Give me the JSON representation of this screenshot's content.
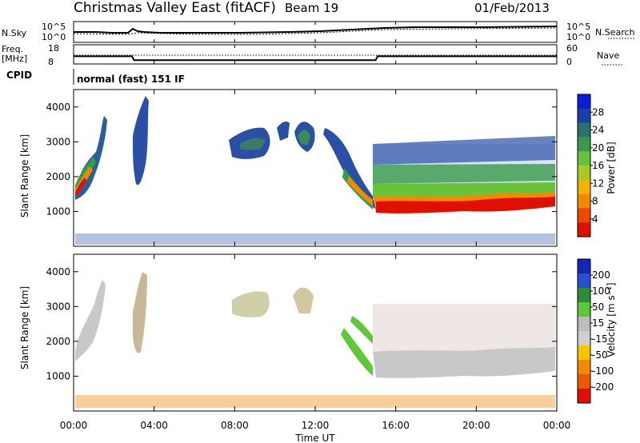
{
  "header": {
    "station": "Christmas Valley East (fitACF)",
    "beam": "Beam 19",
    "date": "01/Feb/2013"
  },
  "chart_data": [
    {
      "name": "noise-panel",
      "type": "line",
      "left_label": "N.Sky",
      "right_label": "N.Search",
      "left_ticks": [
        "10^5",
        "10^0"
      ],
      "right_ticks": [
        "10^5",
        "10^0"
      ]
    },
    {
      "name": "frequency-nave-panel",
      "type": "line",
      "left_label_line1": "Freq.",
      "left_label_line2": "[MHz]",
      "right_label": "Nave",
      "left_ticks": [
        "18",
        "8"
      ],
      "right_ticks": [
        "60",
        "0"
      ],
      "series": [
        {
          "name": "Freq.",
          "x": [
            0.0,
            2.9,
            3.0,
            15.0,
            15.1,
            24.0
          ],
          "y": [
            12.0,
            12.0,
            10.0,
            10.0,
            12.0,
            12.0
          ]
        }
      ]
    },
    {
      "name": "cpid-panel",
      "type": "table",
      "label": "CPID",
      "mode": "normal (fast) 151 IF"
    },
    {
      "name": "power-panel",
      "type": "heatmap",
      "ylabel": "Slant Range [km]",
      "y_ticks": [
        "1000",
        "2000",
        "3000",
        "4000"
      ],
      "ylim": [
        0,
        4500
      ],
      "colorbar_label": "Power [dB]",
      "colorbar_ticks": [
        "28",
        "24",
        "20",
        "16",
        "12",
        "8",
        "4"
      ],
      "colorbar_colors": [
        "#0a1ed8",
        "#1a3fa8",
        "#2f6e6e",
        "#3a9a4a",
        "#6ac23a",
        "#a8c82a",
        "#f2b400",
        "#f08a00",
        "#ec4a00",
        "#e01000"
      ]
    },
    {
      "name": "velocity-panel",
      "type": "heatmap",
      "ylabel": "Slant Range [km]",
      "y_ticks": [
        "1000",
        "2000",
        "3000",
        "4000"
      ],
      "ylim": [
        0,
        4500
      ],
      "colorbar_label": "Velocity [m s⁻¹]",
      "colorbar_ticks": [
        "200",
        "100",
        "50",
        "15",
        "-15",
        "-50",
        "-100",
        "-200"
      ],
      "colorbar_colors": [
        "#1428b8",
        "#2a4ed0",
        "#2f8a3a",
        "#5ec83a",
        "#bdbdbd",
        "#cfcfcf",
        "#f3c600",
        "#f08a00",
        "#ec5a00",
        "#e01000"
      ]
    }
  ],
  "x_axis": {
    "label": "Time UT",
    "ticks": [
      "00:00",
      "04:00",
      "08:00",
      "12:00",
      "16:00",
      "20:00",
      "00:00"
    ],
    "hours": [
      0,
      4,
      8,
      12,
      16,
      20,
      24
    ]
  }
}
